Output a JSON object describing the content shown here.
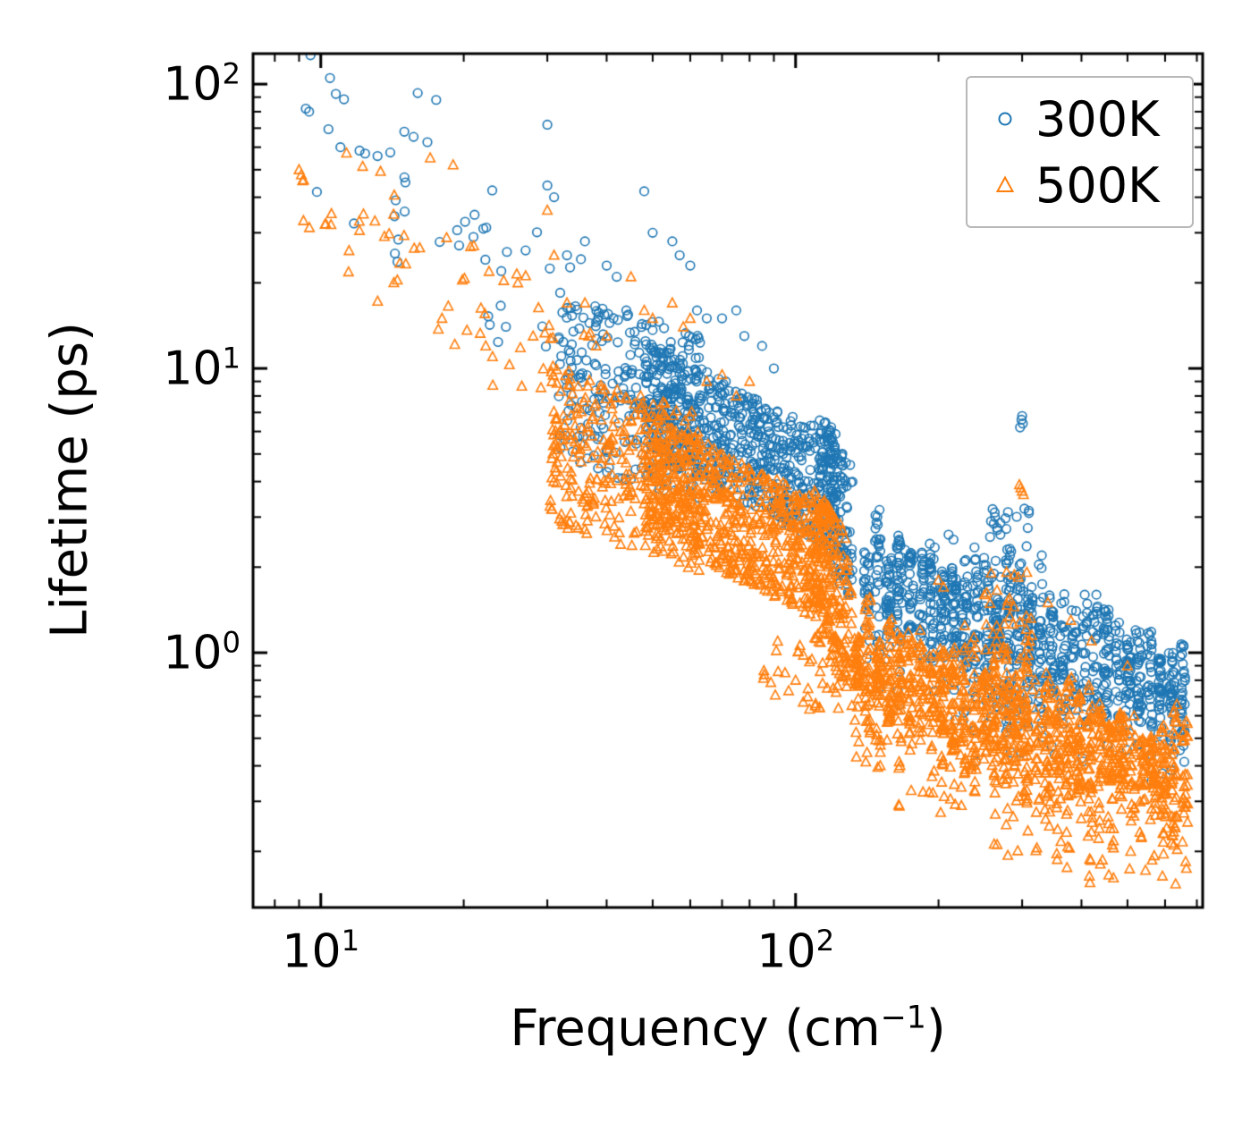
{
  "figure": {
    "background": "#ffffff",
    "axis_color": "#000000",
    "ylabel": "Lifetime (ps)",
    "xlabel": {
      "prefix": "Frequency (cm",
      "sup": "−1",
      "suffix": ")"
    }
  },
  "legend": {
    "items": [
      {
        "label": "300K",
        "marker": "circle",
        "color": "#1f77b4"
      },
      {
        "label": "500K",
        "marker": "triangle-up",
        "color": "#ff7f0e"
      }
    ]
  },
  "chart_data": {
    "type": "scatter",
    "title": "",
    "xlabel": "Frequency (cm^-1)",
    "ylabel": "Lifetime (ps)",
    "x_scale": "log",
    "y_scale": "log",
    "xlim": [
      7.2,
      720
    ],
    "ylim": [
      0.127,
      128
    ],
    "grid": false,
    "legend_position": "upper right",
    "x_major_ticks": [
      {
        "value": 10,
        "base": "10",
        "exp": "1"
      },
      {
        "value": 100,
        "base": "10",
        "exp": "2"
      }
    ],
    "y_major_ticks": [
      {
        "value": 1,
        "base": "10",
        "exp": "0"
      },
      {
        "value": 10,
        "base": "10",
        "exp": "1"
      },
      {
        "value": 100,
        "base": "10",
        "exp": "2"
      }
    ],
    "seed": 20230317,
    "note": "Dense phonon-lifetime point clouds reconstructed as log-log density bands (logy_start/logy_end give band center at band logx ends) plus explicit outlier points read from the plot.",
    "series": [
      {
        "name": "300K",
        "marker": "circle",
        "color": "#1f77b4",
        "marker_radius": 4.8,
        "bands": [
          {
            "n": 45,
            "logx": [
              0.95,
              1.56
            ],
            "logy_start": 1.88,
            "logy_end": 1.12,
            "spread": 0.26
          },
          {
            "n": 260,
            "logx": [
              1.5,
              1.8
            ],
            "logy_start": 0.98,
            "logy_end": 0.82,
            "spread": 0.3
          },
          {
            "n": 650,
            "logx": [
              1.68,
              2.085
            ],
            "logy_start": 0.9,
            "logy_end": 0.56,
            "spread": 0.2
          },
          {
            "n": 140,
            "logx": [
              2.05,
              2.12
            ],
            "logy_start": 0.62,
            "logy_end": 0.4,
            "spread": 0.26
          },
          {
            "n": 1050,
            "logx": [
              2.15,
              2.815
            ],
            "logy_start": 0.26,
            "logy_end": -0.14,
            "spread": 0.19,
            "columns": 30,
            "tail": 0.25,
            "tail_prob": 0.22
          },
          {
            "n": 70,
            "logx": [
              2.4,
              2.5
            ],
            "logy_start": 0.1,
            "logy_end": 0.12,
            "spread": 0.4
          }
        ],
        "outliers": [
          [
            9.3,
            82
          ],
          [
            9.45,
            80
          ],
          [
            11,
            60
          ],
          [
            16,
            93
          ],
          [
            17.5,
            88
          ],
          [
            15,
            47
          ],
          [
            22,
            31
          ],
          [
            24,
            22
          ],
          [
            27,
            26
          ],
          [
            30,
            72
          ],
          [
            30,
            44
          ],
          [
            31,
            40
          ],
          [
            33,
            25
          ],
          [
            36,
            28
          ],
          [
            40,
            23
          ],
          [
            42,
            21
          ],
          [
            44,
            16
          ],
          [
            48,
            42
          ],
          [
            50,
            30
          ],
          [
            55,
            28
          ],
          [
            57,
            25
          ],
          [
            60,
            23
          ],
          [
            62,
            16
          ],
          [
            65,
            15
          ],
          [
            70,
            15
          ],
          [
            75,
            16
          ],
          [
            78,
            13
          ],
          [
            85,
            12
          ],
          [
            90,
            10
          ],
          [
            150,
            1.0
          ],
          [
            155,
            0.95
          ],
          [
            170,
            2.3
          ],
          [
            175,
            2.2
          ],
          [
            210,
            2.6
          ],
          [
            215,
            2.5
          ],
          [
            258,
            2.9
          ],
          [
            260,
            3.2
          ],
          [
            263,
            3.0
          ],
          [
            266,
            2.7
          ],
          [
            270,
            2.6
          ],
          [
            297,
            6.2
          ],
          [
            299,
            6.6
          ],
          [
            300,
            6.8
          ],
          [
            301,
            6.4
          ],
          [
            310,
            3.1
          ],
          [
            330,
            2.2
          ],
          [
            430,
            1.6
          ],
          [
            520,
            1.2
          ]
        ]
      },
      {
        "name": "500K",
        "marker": "triangle-up",
        "color": "#ff7f0e",
        "marker_radius": 5.5,
        "bands": [
          {
            "n": 60,
            "logx": [
              0.95,
              1.58
            ],
            "logy_start": 1.66,
            "logy_end": 0.92,
            "spread": 0.24
          },
          {
            "n": 300,
            "logx": [
              1.48,
              1.8
            ],
            "logy_start": 0.74,
            "logy_end": 0.56,
            "spread": 0.28
          },
          {
            "n": 700,
            "logx": [
              1.68,
              2.08
            ],
            "logy_start": 0.64,
            "logy_end": 0.3,
            "spread": 0.21
          },
          {
            "n": 150,
            "logx": [
              2.04,
              2.12
            ],
            "logy_start": 0.32,
            "logy_end": 0.12,
            "spread": 0.27
          },
          {
            "n": 35,
            "logx": [
              1.93,
              2.12
            ],
            "logy_start": -0.02,
            "logy_end": -0.18,
            "spread": 0.12
          },
          {
            "n": 1300,
            "logx": [
              2.13,
              2.82
            ],
            "logy_start": -0.03,
            "logy_end": -0.44,
            "spread": 0.18,
            "columns": 32,
            "tail": 0.35,
            "tail_prob": 0.28
          },
          {
            "n": 60,
            "logx": [
              2.4,
              2.5
            ],
            "logy_start": -0.05,
            "logy_end": -0.02,
            "spread": 0.35
          }
        ],
        "outliers": [
          [
            9.0,
            50
          ],
          [
            9.1,
            48
          ],
          [
            9.2,
            46
          ],
          [
            13,
            33
          ],
          [
            17,
            55
          ],
          [
            19,
            52
          ],
          [
            18,
            15
          ],
          [
            21,
            27
          ],
          [
            23,
            11
          ],
          [
            26,
            20
          ],
          [
            28,
            13
          ],
          [
            30,
            36
          ],
          [
            31,
            25
          ],
          [
            33,
            17
          ],
          [
            36,
            17
          ],
          [
            38,
            12
          ],
          [
            40,
            13
          ],
          [
            45,
            21
          ],
          [
            48,
            16
          ],
          [
            50,
            15
          ],
          [
            55,
            17
          ],
          [
            58,
            14
          ],
          [
            60,
            15
          ],
          [
            65,
            9
          ],
          [
            70,
            9.5
          ],
          [
            75,
            8
          ],
          [
            80,
            9
          ],
          [
            95,
            0.85
          ],
          [
            100,
            0.8
          ],
          [
            110,
            0.65
          ],
          [
            120,
            0.75
          ],
          [
            200,
            1.8
          ],
          [
            205,
            1.7
          ],
          [
            250,
            1.6
          ],
          [
            296,
            3.9
          ],
          [
            298,
            3.8
          ],
          [
            300,
            3.7
          ],
          [
            302,
            3.6
          ],
          [
            340,
            1.5
          ],
          [
            380,
            1.3
          ],
          [
            420,
            1.1
          ],
          [
            500,
            0.9
          ]
        ]
      }
    ]
  }
}
